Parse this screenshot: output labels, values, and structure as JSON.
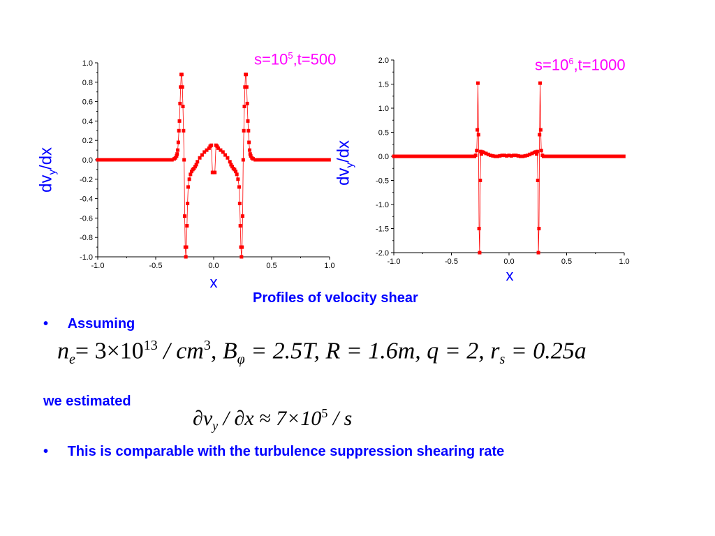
{
  "chart_data": [
    {
      "type": "scatter",
      "annotation_base": "s=10",
      "annotation_exp": "5",
      "annotation_rest": ",t=500",
      "xlabel": "x",
      "ylabel_main": "dv",
      "ylabel_sub": "y",
      "ylabel_rest": "/dx",
      "xlim": [
        -1.0,
        1.0
      ],
      "ylim": [
        -1.0,
        1.0
      ],
      "xticks": [
        "-1.0",
        "-0.5",
        "0.0",
        "0.5",
        "1.0"
      ],
      "yticks": [
        "1.0",
        "0.8",
        "0.6",
        "0.4",
        "0.2",
        "0.0",
        "-0.2",
        "-0.4",
        "-0.6",
        "-0.8",
        "-1.0"
      ],
      "color": "#ff0000",
      "x": [
        -0.36,
        -0.34,
        -0.33,
        -0.32,
        -0.315,
        -0.31,
        -0.305,
        -0.3,
        -0.295,
        -0.29,
        -0.285,
        -0.28,
        -0.275,
        -0.27,
        -0.265,
        -0.26,
        -0.255,
        -0.25,
        -0.245,
        -0.24,
        -0.235,
        -0.23,
        -0.225,
        -0.22,
        -0.21,
        -0.2,
        -0.19,
        -0.18,
        -0.17,
        -0.16,
        -0.15,
        -0.14,
        -0.12,
        -0.1,
        -0.08,
        -0.06,
        -0.04,
        -0.03,
        -0.02,
        -0.01,
        0.0,
        0.01,
        0.02,
        0.03,
        0.04,
        0.06,
        0.08,
        0.1,
        0.12,
        0.14,
        0.15,
        0.16,
        0.17,
        0.18,
        0.19,
        0.2,
        0.21,
        0.22,
        0.225,
        0.23,
        0.235,
        0.24,
        0.245,
        0.25,
        0.255,
        0.26,
        0.265,
        0.27,
        0.275,
        0.28,
        0.285,
        0.29,
        0.295,
        0.3,
        0.305,
        0.31,
        0.315,
        0.32,
        0.33,
        0.34,
        0.36
      ],
      "y": [
        0.0,
        0.01,
        0.02,
        0.04,
        0.06,
        0.1,
        0.18,
        0.3,
        0.4,
        0.58,
        0.75,
        0.88,
        0.88,
        0.75,
        0.55,
        0.3,
        0.0,
        -0.58,
        -0.9,
        -1.0,
        -0.9,
        -0.68,
        -0.45,
        -0.28,
        -0.2,
        -0.15,
        -0.12,
        -0.1,
        -0.09,
        -0.07,
        -0.05,
        -0.02,
        0.02,
        0.05,
        0.08,
        0.1,
        0.12,
        0.14,
        0.15,
        -0.13,
        -0.13,
        -0.13,
        0.15,
        0.14,
        0.12,
        0.1,
        0.08,
        0.05,
        0.02,
        -0.02,
        -0.05,
        -0.07,
        -0.09,
        -0.1,
        -0.12,
        -0.15,
        -0.2,
        -0.28,
        -0.45,
        -0.68,
        -0.9,
        -1.0,
        -0.9,
        -0.58,
        0.0,
        0.3,
        0.55,
        0.75,
        0.88,
        0.88,
        0.75,
        0.58,
        0.4,
        0.3,
        0.18,
        0.1,
        0.06,
        0.04,
        0.02,
        0.01,
        0.0
      ],
      "flat_left": [
        -1.0,
        -0.36
      ],
      "flat_right": [
        0.36,
        1.0
      ]
    },
    {
      "type": "scatter",
      "annotation_base": "s=10",
      "annotation_exp": "6",
      "annotation_rest": ",t=1000",
      "xlabel": "x",
      "ylabel_main": "dv",
      "ylabel_sub": "y",
      "ylabel_rest": "/dx",
      "xlim": [
        -1.0,
        1.0
      ],
      "ylim": [
        -2.0,
        2.0
      ],
      "xticks": [
        "-1.0",
        "-0.5",
        "0.0",
        "0.5",
        "1.0"
      ],
      "yticks": [
        "2.0",
        "1.5",
        "1.0",
        "0.5",
        "0.0",
        "-0.5",
        "-1.0",
        "-1.5",
        "-2.0"
      ],
      "color": "#ff0000",
      "x": [
        -0.3,
        -0.29,
        -0.28,
        -0.275,
        -0.27,
        -0.265,
        -0.26,
        -0.255,
        -0.25,
        -0.245,
        -0.24,
        -0.235,
        -0.23,
        -0.22,
        -0.2,
        -0.18,
        -0.16,
        -0.14,
        -0.12,
        -0.1,
        -0.08,
        -0.06,
        -0.04,
        -0.02,
        0.0,
        0.02,
        0.04,
        0.06,
        0.08,
        0.1,
        0.12,
        0.14,
        0.16,
        0.18,
        0.2,
        0.22,
        0.23,
        0.235,
        0.24,
        0.245,
        0.25,
        0.255,
        0.26,
        0.265,
        0.27,
        0.275,
        0.28,
        0.29,
        0.3
      ],
      "y": [
        0.0,
        0.02,
        0.12,
        0.55,
        1.52,
        0.45,
        -1.5,
        -2.0,
        -0.5,
        0.1,
        0.05,
        0.08,
        0.09,
        0.08,
        0.06,
        0.04,
        0.02,
        0.01,
        0.0,
        0.0,
        0.01,
        0.02,
        0.02,
        0.01,
        0.02,
        0.01,
        0.02,
        0.02,
        0.01,
        0.0,
        0.0,
        0.01,
        0.02,
        0.04,
        0.06,
        0.08,
        0.09,
        0.08,
        0.05,
        0.1,
        -0.5,
        -2.0,
        -1.5,
        0.45,
        1.52,
        0.55,
        0.12,
        0.02,
        0.0
      ],
      "flat_left": [
        -1.0,
        -0.3
      ],
      "flat_right": [
        0.3,
        1.0
      ]
    }
  ],
  "caption": "Profiles of velocity shear",
  "bullets": {
    "first_marker": "•",
    "first_text": "Assuming",
    "second_marker": "•",
    "second_text": "This is comparable with the turbulence suppression shearing rate"
  },
  "estimated_label": "we estimated",
  "equation1": {
    "n": "n",
    "n_sub": "e",
    "eq_3x10": "= 3×10",
    "exp13": "13",
    "cm": " / cm",
    "exp3": "3",
    "comma_B": ", B",
    "B_sub": "φ",
    "rest": " = 2.5T, R = 1.6m, q = 2, r",
    "r_sub": "s",
    "tail": " = 0.25a"
  },
  "equation2": {
    "partial_v": "∂v",
    "v_sub": "y",
    "mid": " / ∂x ≈ 7×10",
    "exp5": "5",
    "tail": " / s"
  }
}
